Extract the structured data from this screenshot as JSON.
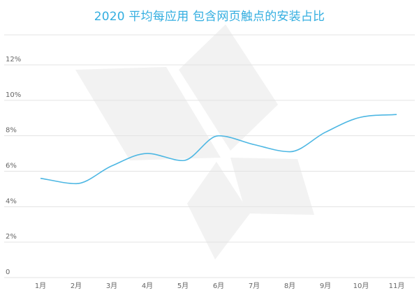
{
  "chart_data": {
    "type": "line",
    "title": "2020 平均每应用 包含网页触点的安装占比",
    "xlabel": "",
    "ylabel": "",
    "categories": [
      "1月",
      "2月",
      "3月",
      "4月",
      "5月",
      "6月",
      "7月",
      "8月",
      "9月",
      "10月",
      "11月"
    ],
    "series": [
      {
        "values": [
          5.6,
          5.3,
          6.3,
          7.0,
          6.6,
          8.0,
          7.5,
          7.1,
          8.2,
          9.05,
          9.2
        ]
      }
    ],
    "ylim": [
      0,
      12
    ],
    "yticks": [
      0,
      2,
      4,
      6,
      8,
      10,
      12
    ],
    "ytick_labels": [
      "0",
      "2%",
      "4%",
      "6%",
      "8%",
      "10%",
      "12%"
    ],
    "grid": "horizontal",
    "legend": "none",
    "colors": {
      "line": "#4db7e3",
      "title": "#33aee0",
      "grid": "#e3e3e3",
      "watermark": "#f2f2f2"
    }
  }
}
